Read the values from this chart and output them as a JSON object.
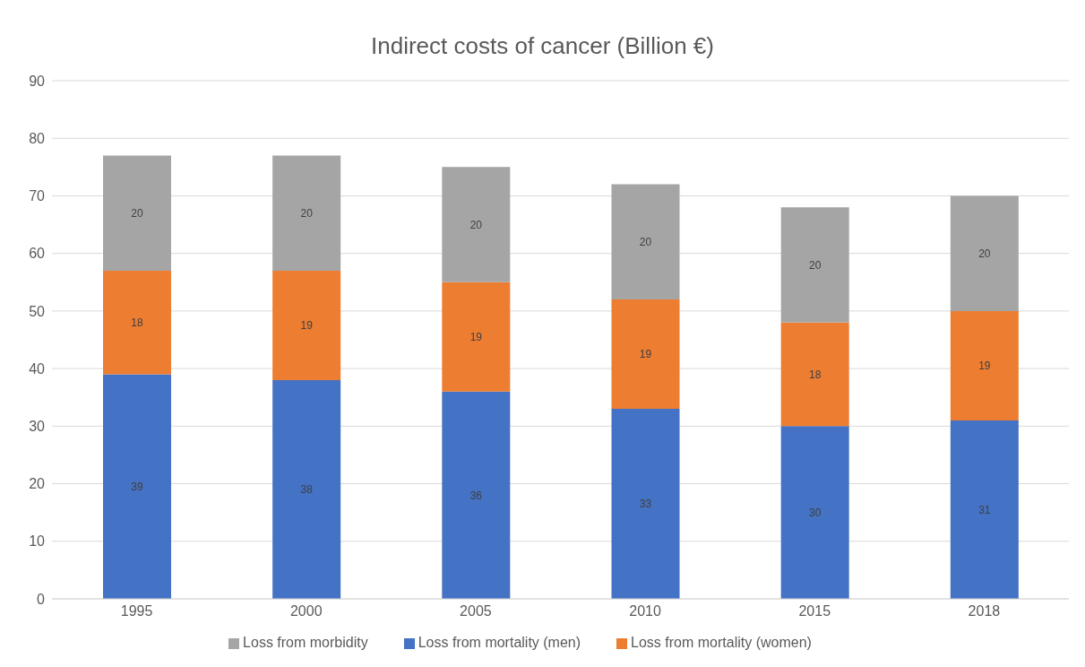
{
  "chart_data": {
    "type": "bar",
    "title": "Indirect costs of cancer (Billion €)",
    "categories": [
      "1995",
      "2000",
      "2005",
      "2010",
      "2015",
      "2018"
    ],
    "series": [
      {
        "name": "Loss from mortality (men)",
        "color": "#4472c4",
        "values": [
          39,
          38,
          36,
          33,
          30,
          31
        ]
      },
      {
        "name": "Loss from mortality (women)",
        "color": "#ed7d31",
        "values": [
          18,
          19,
          19,
          19,
          18,
          19
        ]
      },
      {
        "name": "Loss from morbidity",
        "color": "#a5a5a5",
        "values": [
          20,
          20,
          20,
          20,
          20,
          20
        ]
      }
    ],
    "stacked": true,
    "ylim": [
      0,
      90
    ],
    "yticks": [
      0,
      10,
      20,
      30,
      40,
      50,
      60,
      70,
      80,
      90
    ],
    "grid": "y",
    "legend": "bottom",
    "data_labels": true
  }
}
